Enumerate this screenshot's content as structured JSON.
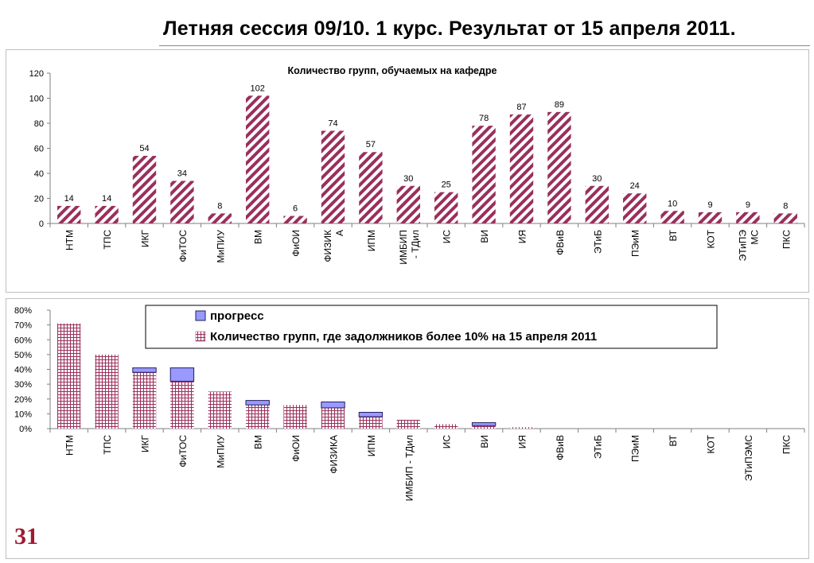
{
  "slide": {
    "title": "Летняя сессия 09/10.   1 курс.  Результат от 15 апреля 2011.",
    "number": "31"
  },
  "colors": {
    "hatch": "#9a2f5b",
    "progress_fill": "#9999ff",
    "progress_border": "#1f1f5f",
    "axis": "#7f7f7f"
  },
  "chart_data": [
    {
      "type": "bar",
      "title": "Количество групп, обучаемых на кафедре",
      "categories": [
        "НТМ",
        "ТПС",
        "ИКГ",
        "ФиТОС",
        "МиПИУ",
        "ВМ",
        "ФиОИ",
        "ФИЗИК\nА",
        "ИПМ",
        "ИМБИП\n- ТДил",
        "ИС",
        "ВИ",
        "ИЯ",
        "ФВиВ",
        "ЭТиБ",
        "ПЭиМ",
        "ВТ",
        "КОТ",
        "ЭТиПЭ\nМС",
        "ПКС"
      ],
      "values": [
        14,
        14,
        54,
        34,
        8,
        102,
        6,
        74,
        57,
        30,
        25,
        78,
        87,
        89,
        30,
        24,
        10,
        9,
        9,
        8
      ],
      "ylim": [
        0,
        120
      ],
      "yticks": [
        0,
        20,
        40,
        60,
        80,
        100,
        120
      ],
      "data_labels": true,
      "pattern": "diagonal-hatch",
      "grid": false
    },
    {
      "type": "bar",
      "stacked": true,
      "categories": [
        "НТМ",
        "ТПС",
        "ИКГ",
        "ФиТОС",
        "МиПИУ",
        "ВМ",
        "ФиОИ",
        "ФИЗИКА",
        "ИПМ",
        "ИМБИП - ТДил",
        "ИС",
        "ВИ",
        "ИЯ",
        "ФВиВ",
        "ЭТиБ",
        "ПЭиМ",
        "ВТ",
        "КОТ",
        "ЭТиПЭМС",
        "ПКС"
      ],
      "series": [
        {
          "name": "Количество групп, где задолжников более  10% на 15 апреля 2011",
          "pattern": "grid-hatch",
          "values": [
            71,
            50,
            38,
            32,
            25,
            16,
            16,
            14,
            8,
            6,
            3,
            2,
            1,
            0,
            0,
            0,
            0,
            0,
            0,
            0
          ]
        },
        {
          "name": "прогресс",
          "pattern": "solid",
          "values": [
            0,
            0,
            3,
            9,
            0,
            3,
            0,
            4,
            3,
            0,
            0,
            2,
            0,
            0,
            0,
            0,
            0,
            0,
            0,
            0
          ]
        }
      ],
      "ylim": [
        0,
        80
      ],
      "yticks": [
        "0%",
        "10%",
        "20%",
        "30%",
        "40%",
        "50%",
        "60%",
        "70%",
        "80%"
      ],
      "legend": "top-center",
      "grid": false
    }
  ]
}
